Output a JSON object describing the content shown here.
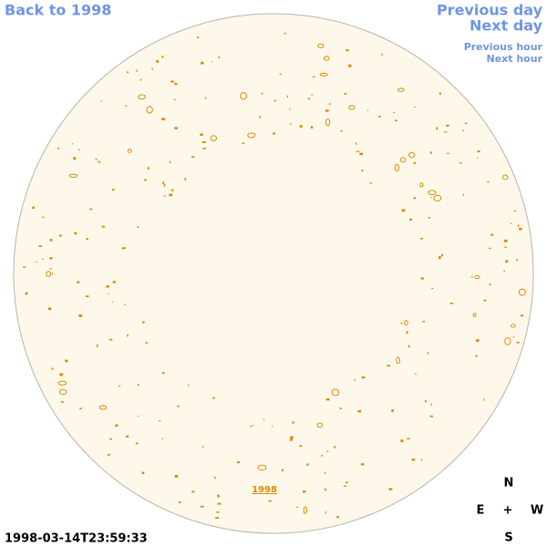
{
  "navigation": {
    "back": "Back to 1998",
    "previous_day": "Previous day",
    "next_day": "Next day",
    "previous_hour": "Previous hour",
    "next_hour": "Next hour"
  },
  "timestamp": "1998-03-14T23:59:33",
  "disk_label": "1998",
  "compass": {
    "north": "N",
    "east": "E",
    "center": "+",
    "west": "W",
    "south": "S"
  }
}
